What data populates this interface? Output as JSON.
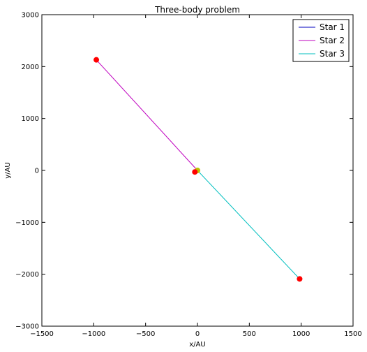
{
  "chart_data": {
    "type": "line",
    "title": "Three-body problem",
    "xlabel": "x/AU",
    "ylabel": "y/AU",
    "xlim": [
      -1500,
      1500
    ],
    "ylim": [
      -3000,
      3000
    ],
    "xticks": [
      -1500,
      -1000,
      -500,
      0,
      500,
      1000,
      1500
    ],
    "yticks": [
      -3000,
      -2000,
      -1000,
      0,
      1000,
      2000,
      3000
    ],
    "xtick_labels": [
      "−1500",
      "−1000",
      "−500",
      "0",
      "500",
      "1000",
      "1500"
    ],
    "ytick_labels": [
      "−3000",
      "−2000",
      "−1000",
      "0",
      "1000",
      "2000",
      "3000"
    ],
    "grid": false,
    "legend_position": "top-right",
    "series": [
      {
        "name": "Star 1",
        "color": "#0000bf",
        "points": [
          [
            0,
            0
          ],
          [
            -15,
            -20
          ],
          [
            -25,
            -30
          ]
        ]
      },
      {
        "name": "Star 2",
        "color": "#bf00bf",
        "points": [
          [
            0,
            0
          ],
          [
            -975,
            2130
          ]
        ]
      },
      {
        "name": "Star 3",
        "color": "#00bfbf",
        "points": [
          [
            0,
            0
          ],
          [
            985,
            -2090
          ]
        ]
      }
    ],
    "markers": [
      {
        "name": "star-1-start",
        "x": 0,
        "y": 0,
        "color": "#bfbf00"
      },
      {
        "name": "star-1-end",
        "x": -25,
        "y": -30,
        "color": "#ff0000"
      },
      {
        "name": "star-2-end",
        "x": -975,
        "y": 2130,
        "color": "#ff0000"
      },
      {
        "name": "star-3-end",
        "x": 985,
        "y": -2090,
        "color": "#ff0000"
      }
    ]
  }
}
